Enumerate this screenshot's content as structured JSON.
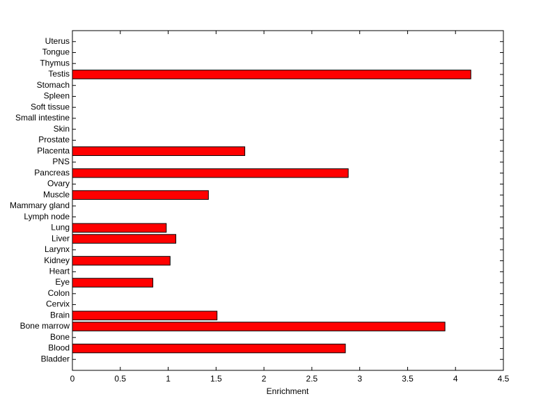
{
  "chart_data": {
    "type": "barh",
    "xlabel": "Enrichment",
    "categories": [
      "Bladder",
      "Blood",
      "Bone",
      "Bone marrow",
      "Brain",
      "Cervix",
      "Colon",
      "Eye",
      "Heart",
      "Kidney",
      "Larynx",
      "Liver",
      "Lung",
      "Lymph node",
      "Mammary gland",
      "Muscle",
      "Ovary",
      "Pancreas",
      "PNS",
      "Placenta",
      "Prostate",
      "Skin",
      "Small intestine",
      "Soft tissue",
      "Spleen",
      "Stomach",
      "Testis",
      "Thymus",
      "Tongue",
      "Uterus"
    ],
    "values": [
      0,
      2.85,
      0,
      3.89,
      1.51,
      0,
      0,
      0.84,
      0,
      1.02,
      0,
      1.08,
      0.98,
      0,
      0,
      1.42,
      0,
      2.88,
      0,
      1.8,
      0,
      0,
      0,
      0,
      0,
      0,
      4.16,
      0,
      0,
      0
    ],
    "color": "#ff0000",
    "xlim": [
      0,
      4.5
    ],
    "xticks": [
      0,
      0.5,
      1,
      1.5,
      2,
      2.5,
      3,
      3.5,
      4,
      4.5
    ]
  }
}
